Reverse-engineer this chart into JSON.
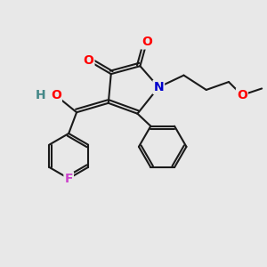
{
  "bg_color": "#e8e8e8",
  "bond_color": "#1a1a1a",
  "bond_width": 1.5,
  "atom_colors": {
    "O": "#ff0000",
    "N": "#0000cc",
    "F": "#cc44cc",
    "H_O": "#448888",
    "C": "#1a1a1a"
  },
  "font_size_atom": 10
}
